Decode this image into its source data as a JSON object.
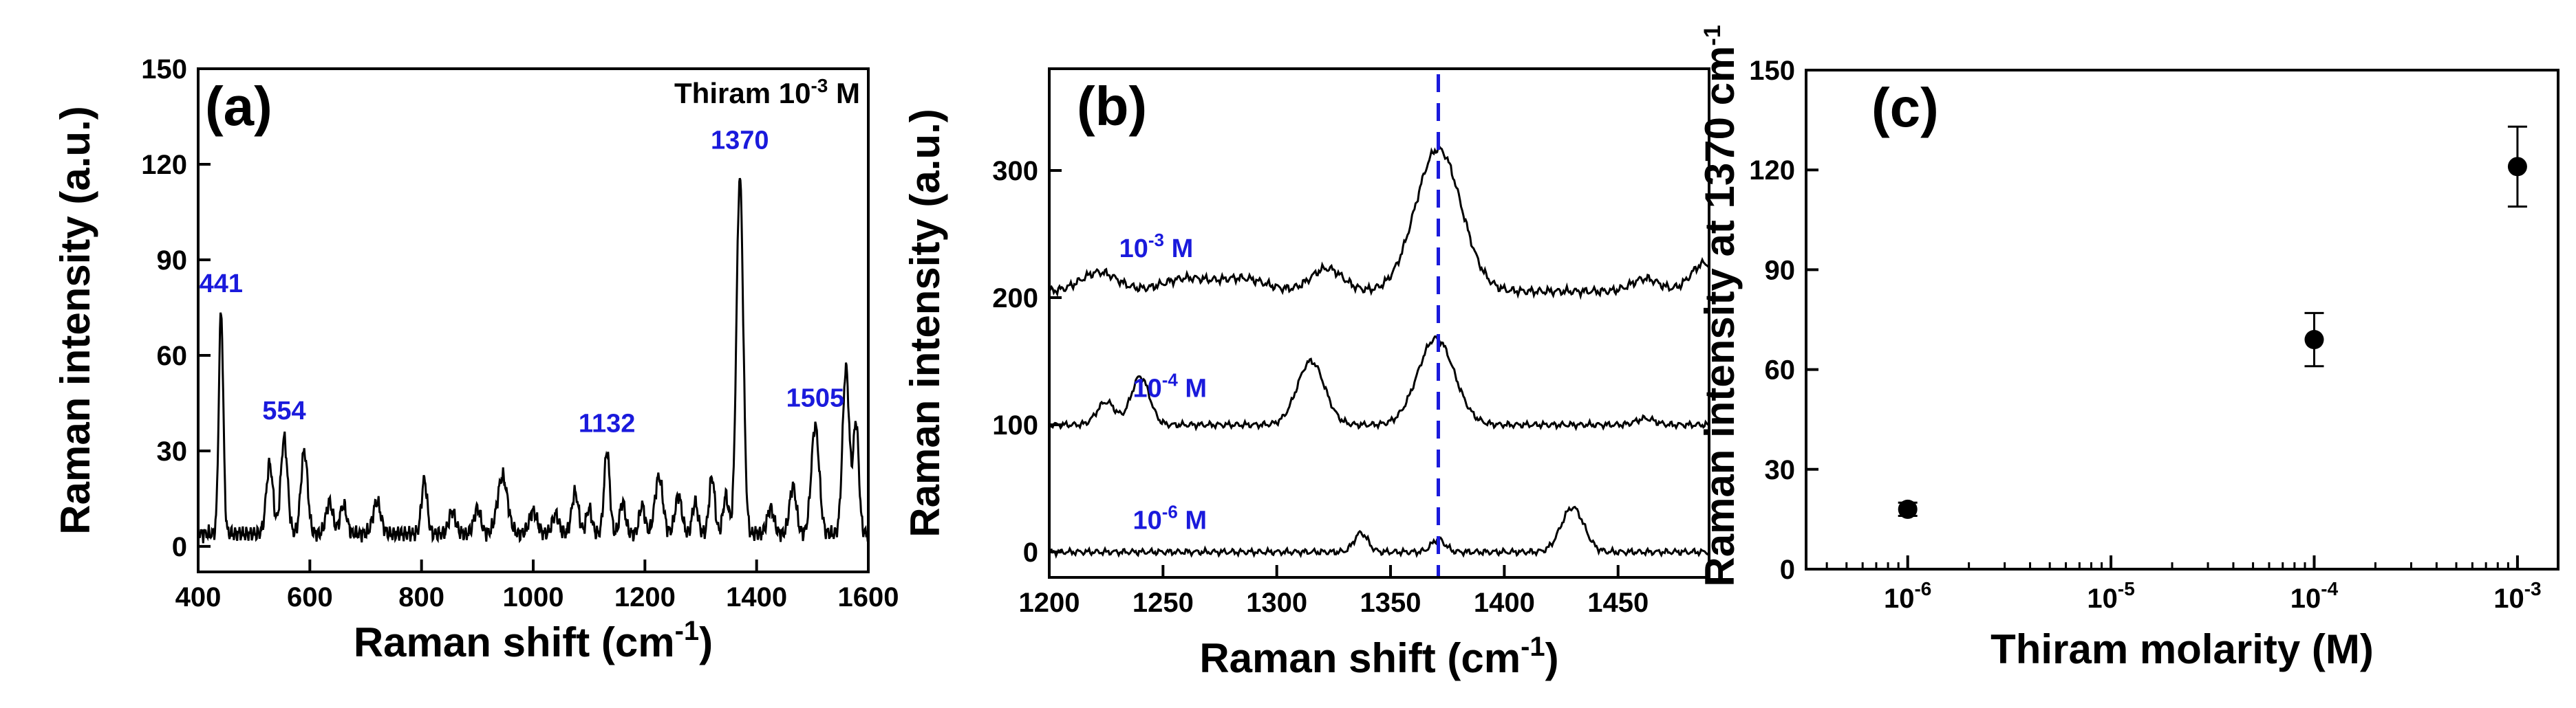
{
  "chart_data": [
    {
      "panel": "(a)",
      "type": "line",
      "title": "",
      "corner_label": {
        "base": "Thiram 10",
        "exp": "-3",
        "unit": "M"
      },
      "xlabel": {
        "base": "Raman shift (cm",
        "exp": "-1",
        "tail": ")"
      },
      "ylabel": "Raman intensity (a.u.)",
      "xlim": [
        400,
        1600
      ],
      "ylim": [
        -8,
        150
      ],
      "xticks": [
        400,
        600,
        800,
        1000,
        1200,
        1400,
        1600
      ],
      "yticks": [
        0,
        30,
        60,
        90,
        120,
        150
      ],
      "peak_labels": [
        {
          "x": 441,
          "y": 76,
          "text": "441"
        },
        {
          "x": 554,
          "y": 36,
          "text": "554"
        },
        {
          "x": 1132,
          "y": 32,
          "text": "1132"
        },
        {
          "x": 1370,
          "y": 121,
          "text": "1370"
        },
        {
          "x": 1505,
          "y": 40,
          "text": "1505"
        }
      ],
      "peaks": [
        [
          441,
          70,
          4
        ],
        [
          528,
          22,
          6
        ],
        [
          554,
          30,
          6
        ],
        [
          590,
          26,
          6
        ],
        [
          635,
          10,
          6
        ],
        [
          660,
          9,
          6
        ],
        [
          720,
          10,
          7
        ],
        [
          805,
          17,
          5
        ],
        [
          855,
          7,
          6
        ],
        [
          900,
          8,
          6
        ],
        [
          945,
          18,
          9
        ],
        [
          1000,
          7,
          7
        ],
        [
          1040,
          6,
          6
        ],
        [
          1075,
          13,
          6
        ],
        [
          1100,
          8,
          5
        ],
        [
          1132,
          26,
          5
        ],
        [
          1160,
          10,
          5
        ],
        [
          1195,
          9,
          5
        ],
        [
          1225,
          18,
          7
        ],
        [
          1260,
          12,
          6
        ],
        [
          1290,
          10,
          5
        ],
        [
          1320,
          18,
          5
        ],
        [
          1345,
          12,
          5
        ],
        [
          1370,
          112,
          6
        ],
        [
          1425,
          8,
          6
        ],
        [
          1465,
          15,
          6
        ],
        [
          1505,
          34,
          7
        ],
        [
          1560,
          52,
          6
        ],
        [
          1578,
          35,
          5
        ]
      ],
      "baseline": 4,
      "noise": 3
    },
    {
      "panel": "(b)",
      "type": "line",
      "title": "",
      "xlabel": {
        "base": "Raman shift (cm",
        "exp": "-1",
        "tail": ")"
      },
      "ylabel": "Raman intensity (a.u.)",
      "xlim": [
        1200,
        1490
      ],
      "ylim": [
        -20,
        380
      ],
      "xticks": [
        1200,
        1250,
        1300,
        1350,
        1400,
        1450
      ],
      "yticks": [
        0,
        100,
        200,
        300
      ],
      "reference_line_x": 1371,
      "series": [
        {
          "name": "10^-3 M",
          "label_base": "10",
          "label_exp": "-3",
          "label_unit": "M",
          "label_x": 1247,
          "label_y": 232,
          "offset": 205,
          "noise": 4,
          "peaks": [
            [
              1222,
              15,
              8
            ],
            [
              1260,
              10,
              10
            ],
            [
              1285,
              10,
              10
            ],
            [
              1322,
              18,
              7
            ],
            [
              1371,
              112,
              10
            ],
            [
              1462,
              10,
              6
            ],
            [
              1488,
              22,
              6
            ]
          ]
        },
        {
          "name": "10^-4 M",
          "label_base": "10",
          "label_exp": "-4",
          "label_unit": "M",
          "label_x": 1253,
          "label_y": 122,
          "offset": 100,
          "noise": 3,
          "peaks": [
            [
              1225,
              18,
              4
            ],
            [
              1240,
              38,
              4
            ],
            [
              1315,
              50,
              6
            ],
            [
              1370,
              68,
              8
            ],
            [
              1462,
              5,
              4
            ]
          ]
        },
        {
          "name": "10^-6 M",
          "label_base": "10",
          "label_exp": "-6",
          "label_unit": "M",
          "label_x": 1253,
          "label_y": 18,
          "offset": 0,
          "noise": 3,
          "peaks": [
            [
              1337,
              15,
              3
            ],
            [
              1371,
              10,
              3
            ],
            [
              1430,
              35,
              5
            ]
          ]
        }
      ]
    },
    {
      "panel": "(c)",
      "type": "scatter",
      "title": "",
      "xlabel": "Thiram molarity (M)",
      "ylabel": {
        "base": "Raman intensity at 1370 cm",
        "exp": "-1"
      },
      "xscale": "log",
      "xlim_log10": [
        -6.5,
        -2.8
      ],
      "ylim": [
        0,
        150
      ],
      "xticks": [
        {
          "base": "10",
          "exp": "-6",
          "log10": -6
        },
        {
          "base": "10",
          "exp": "-5",
          "log10": -5
        },
        {
          "base": "10",
          "exp": "-4",
          "log10": -4
        },
        {
          "base": "10",
          "exp": "-3",
          "log10": -3
        }
      ],
      "yticks": [
        0,
        30,
        60,
        90,
        120,
        150
      ],
      "points": [
        {
          "x_log10": -6,
          "y": 18,
          "err": 2
        },
        {
          "x_log10": -4,
          "y": 69,
          "err": 8
        },
        {
          "x_log10": -3,
          "y": 121,
          "err": 12
        }
      ]
    }
  ]
}
